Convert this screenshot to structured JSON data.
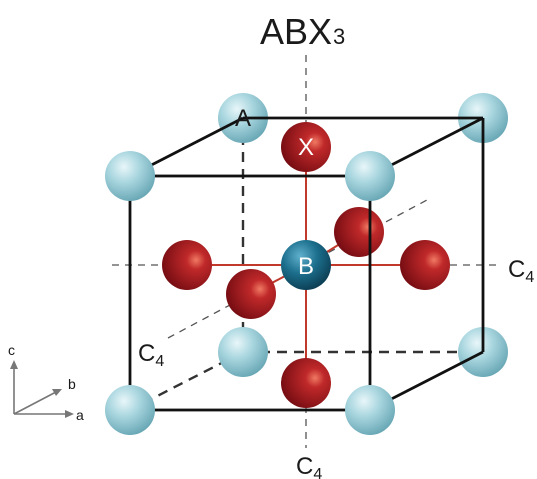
{
  "title": {
    "main": "ABX",
    "sub": "3"
  },
  "atoms": {
    "a": "A",
    "b": "B",
    "x": "X"
  },
  "axes": {
    "c4_main": "C",
    "c4_sub": "4"
  },
  "frame": {
    "c": "c",
    "b": "b",
    "a": "a"
  },
  "colors": {
    "cube_edge": "#111111",
    "axis_dash": "#555555",
    "bond": "#c0392b",
    "atom_a": "#9ecfd9",
    "atom_b": "#1a6f8c",
    "atom_x": "#a3141c"
  }
}
